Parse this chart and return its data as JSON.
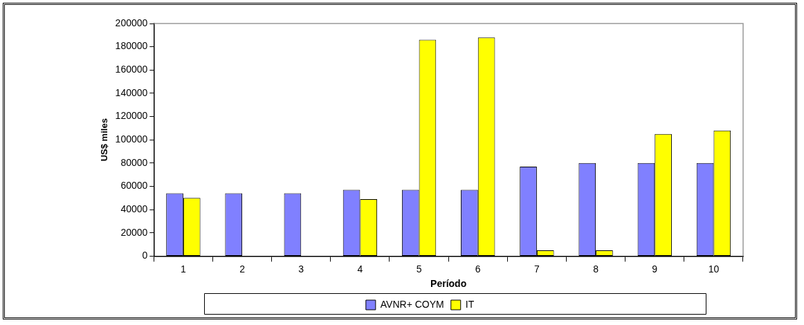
{
  "chart_data": {
    "type": "bar",
    "xlabel": "Período",
    "ylabel": "US$ miles",
    "categories": [
      "1",
      "2",
      "3",
      "4",
      "5",
      "6",
      "7",
      "8",
      "9",
      "10"
    ],
    "series": [
      {
        "name": "AVNR+ COYM",
        "color": "#8080ff",
        "values": [
          54000,
          54000,
          54000,
          57000,
          57000,
          57000,
          77000,
          80000,
          80000,
          80000
        ]
      },
      {
        "name": "IT",
        "color": "#ffff00",
        "values": [
          50000,
          0,
          0,
          49000,
          186000,
          188000,
          5000,
          5000,
          105000,
          108000
        ]
      }
    ],
    "ylim": [
      0,
      200000
    ],
    "yticks": [
      0,
      20000,
      40000,
      60000,
      80000,
      100000,
      120000,
      140000,
      160000,
      180000,
      200000
    ],
    "grid": false,
    "legend": "bottom"
  }
}
